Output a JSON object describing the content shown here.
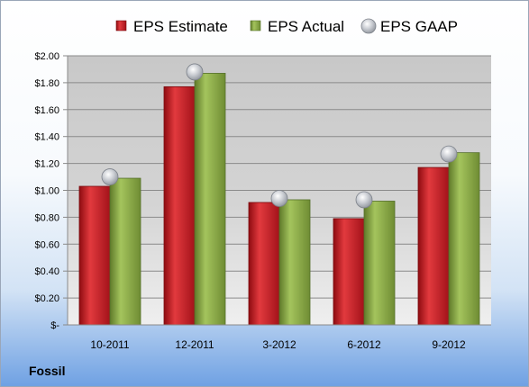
{
  "company": "Fossil",
  "chart_data": {
    "type": "bar",
    "categories": [
      "10-2011",
      "12-2011",
      "3-2012",
      "6-2012",
      "9-2012"
    ],
    "series": [
      {
        "name": "EPS Estimate",
        "kind": "bar",
        "color": "#c0141b",
        "values": [
          1.03,
          1.77,
          0.91,
          0.79,
          1.17
        ]
      },
      {
        "name": "EPS Actual",
        "kind": "bar",
        "color": "#7f9f3c",
        "values": [
          1.09,
          1.87,
          0.93,
          0.92,
          1.28
        ]
      },
      {
        "name": "EPS GAAP",
        "kind": "marker",
        "color": "#b8bcc4",
        "values": [
          1.1,
          1.88,
          0.94,
          0.93,
          1.27
        ]
      }
    ],
    "ylim": [
      0,
      2
    ],
    "y_tick_labels": [
      "$-",
      "$0.20",
      "$0.40",
      "$0.60",
      "$0.80",
      "$1.00",
      "$1.20",
      "$1.40",
      "$1.60",
      "$1.80",
      "$2.00"
    ],
    "grid": true,
    "legend_position": "top"
  }
}
